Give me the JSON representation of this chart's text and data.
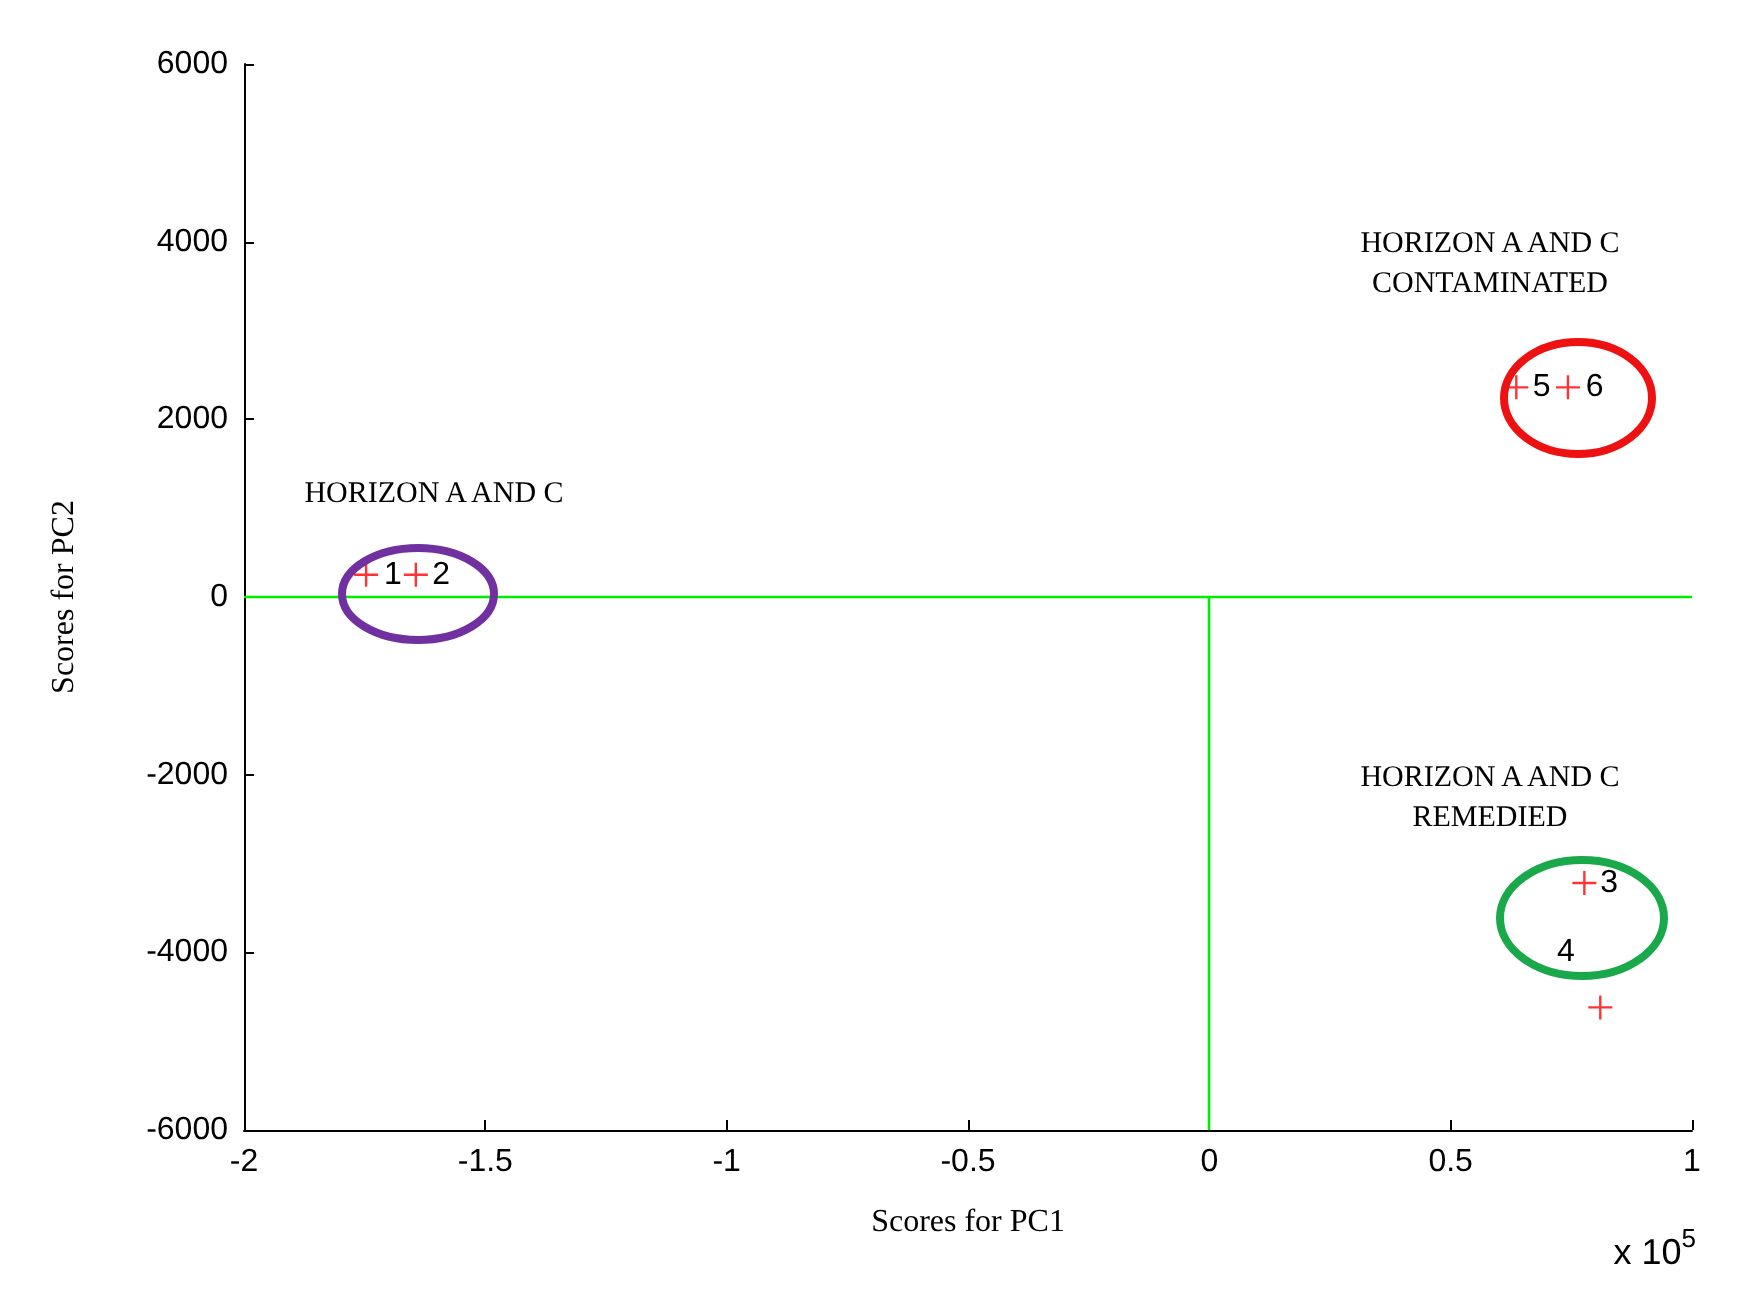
{
  "chart_data": {
    "type": "scatter",
    "xlabel": "Scores for PC1",
    "ylabel": "Scores for PC2",
    "x": [
      -1.747,
      -1.644,
      0.777,
      0.81,
      0.636,
      0.743
    ],
    "series": [
      {
        "color": "#ff0000",
        "values": [
          250,
          250,
          -3220,
          -4620,
          2360,
          2360
        ]
      }
    ],
    "marker": "cross",
    "grid": false,
    "xlim": [
      -2,
      1
    ],
    "xticks": [
      -2,
      -1.5,
      -1,
      -0.5,
      0,
      0.5,
      1
    ],
    "ylim": [
      -6000,
      6000
    ],
    "yticks": [
      -6000,
      -4000,
      -2000,
      0,
      2000,
      4000,
      6000
    ],
    "ref_lines": [
      {
        "axis": "y",
        "value": 0,
        "color": "#00ee00"
      },
      {
        "axis": "x",
        "value": 0,
        "color": "#00ee00"
      }
    ],
    "annotations": [
      {
        "text": "1",
        "x": -1.71,
        "y": 250
      },
      {
        "text": "2",
        "x": -1.61,
        "y": 250
      },
      {
        "text": "3",
        "x": 0.81,
        "y": -3220
      },
      "4",
      {
        "text": "5",
        "x": 0.67,
        "y": 2360
      },
      {
        "text": "6",
        "x": 0.78,
        "y": 2360
      },
      "HORIZON A AND C",
      "HORIZON A AND C\nCONTAMINATED",
      "HORIZON A AND C\nREMEDIED",
      "x 10$^{5}$"
    ]
  }
}
